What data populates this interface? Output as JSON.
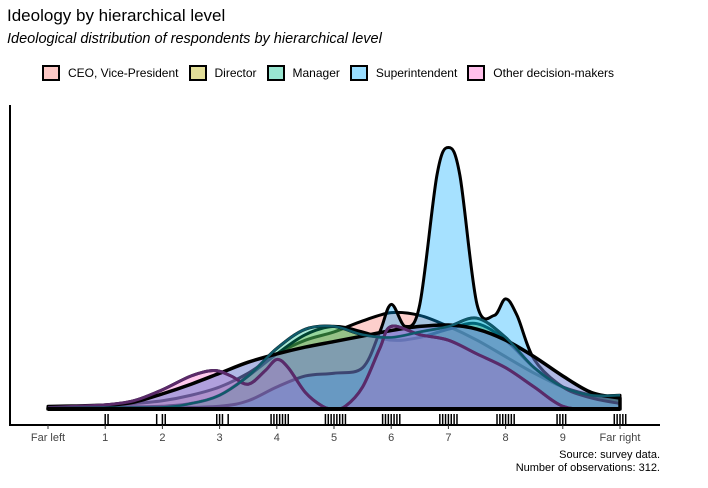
{
  "header": {
    "title": "Ideology by hierarchical level",
    "subtitle": "Ideological distribution of respondents by hierarchical level"
  },
  "caption": {
    "source": "Source: survey data.",
    "observations": "Number of observations: 312."
  },
  "chart_data": {
    "type": "area",
    "title": "Ideology by hierarchical level",
    "subtitle": "Ideological distribution of respondents by hierarchical level",
    "xlabel": "",
    "ylabel": "",
    "x_categories": [
      "Far left",
      "1",
      "2",
      "3",
      "4",
      "5",
      "6",
      "7",
      "8",
      "9",
      "Far right"
    ],
    "x_values": [
      0,
      1,
      2,
      3,
      4,
      5,
      6,
      7,
      8,
      9,
      10
    ],
    "xlim": [
      -0.7,
      10.7
    ],
    "ylim": [
      0,
      1.05
    ],
    "y_ticks_visible": false,
    "grid": false,
    "legend_position": "top",
    "series": [
      {
        "name": "CEO, Vice-President",
        "color": "#f8766d",
        "density": [
          [
            0,
            0.01
          ],
          [
            0.5,
            0.012
          ],
          [
            1,
            0.015
          ],
          [
            1.5,
            0.02
          ],
          [
            2,
            0.03
          ],
          [
            2.5,
            0.05
          ],
          [
            3,
            0.08
          ],
          [
            3.5,
            0.13
          ],
          [
            4,
            0.2
          ],
          [
            4.5,
            0.25
          ],
          [
            5,
            0.28
          ],
          [
            5.5,
            0.32
          ],
          [
            6,
            0.35
          ],
          [
            6.5,
            0.34
          ],
          [
            7,
            0.3
          ],
          [
            7.5,
            0.25
          ],
          [
            8,
            0.19
          ],
          [
            8.5,
            0.13
          ],
          [
            9,
            0.08
          ],
          [
            9.5,
            0.05
          ],
          [
            10,
            0.03
          ]
        ]
      },
      {
        "name": "Director",
        "color": "#b8b000",
        "density": [
          [
            0,
            0.005
          ],
          [
            1,
            0.006
          ],
          [
            1.5,
            0.008
          ],
          [
            2,
            0.01
          ],
          [
            2.5,
            0.02
          ],
          [
            3,
            0.05
          ],
          [
            3.5,
            0.12
          ],
          [
            4,
            0.2
          ],
          [
            4.5,
            0.27
          ],
          [
            5,
            0.3
          ],
          [
            5.5,
            0.28
          ],
          [
            6,
            0.25
          ],
          [
            6.5,
            0.26
          ],
          [
            7,
            0.29
          ],
          [
            7.5,
            0.31
          ],
          [
            8,
            0.25
          ],
          [
            8.5,
            0.15
          ],
          [
            9,
            0.08
          ],
          [
            9.5,
            0.05
          ],
          [
            10,
            0.04
          ]
        ]
      },
      {
        "name": "Manager",
        "color": "#00c08b",
        "density": [
          [
            0,
            0.003
          ],
          [
            1,
            0.005
          ],
          [
            2,
            0.006
          ],
          [
            2.5,
            0.02
          ],
          [
            3,
            0.05
          ],
          [
            3.5,
            0.12
          ],
          [
            4,
            0.22
          ],
          [
            4.5,
            0.29
          ],
          [
            5,
            0.3
          ],
          [
            5.5,
            0.27
          ],
          [
            6,
            0.26
          ],
          [
            6.5,
            0.28
          ],
          [
            7,
            0.3
          ],
          [
            7.5,
            0.33
          ],
          [
            8,
            0.26
          ],
          [
            8.5,
            0.15
          ],
          [
            9,
            0.08
          ],
          [
            9.5,
            0.05
          ],
          [
            10,
            0.05
          ]
        ]
      },
      {
        "name": "Superintendent",
        "color": "#00a9ff",
        "density": [
          [
            0,
            0.0
          ],
          [
            1,
            0.0
          ],
          [
            2,
            0.003
          ],
          [
            3,
            0.01
          ],
          [
            3.5,
            0.03
          ],
          [
            4,
            0.08
          ],
          [
            4.5,
            0.12
          ],
          [
            5,
            0.13
          ],
          [
            5.5,
            0.15
          ],
          [
            5.8,
            0.28
          ],
          [
            6,
            0.38
          ],
          [
            6.25,
            0.3
          ],
          [
            6.5,
            0.38
          ],
          [
            6.8,
            0.85
          ],
          [
            7,
            0.95
          ],
          [
            7.2,
            0.85
          ],
          [
            7.5,
            0.38
          ],
          [
            7.8,
            0.34
          ],
          [
            8,
            0.4
          ],
          [
            8.2,
            0.34
          ],
          [
            8.5,
            0.18
          ],
          [
            9,
            0.08
          ],
          [
            9.5,
            0.04
          ],
          [
            10,
            0.02
          ]
        ]
      },
      {
        "name": "Other decision-makers",
        "color": "#ff61cc",
        "density": [
          [
            0,
            0.005
          ],
          [
            0.5,
            0.01
          ],
          [
            1,
            0.015
          ],
          [
            1.5,
            0.03
          ],
          [
            2,
            0.07
          ],
          [
            2.5,
            0.12
          ],
          [
            2.9,
            0.14
          ],
          [
            3.2,
            0.12
          ],
          [
            3.5,
            0.09
          ],
          [
            3.8,
            0.14
          ],
          [
            4,
            0.18
          ],
          [
            4.2,
            0.15
          ],
          [
            4.5,
            0.06
          ],
          [
            4.8,
            0.01
          ],
          [
            5,
            0.0
          ],
          [
            5.2,
            0.01
          ],
          [
            5.5,
            0.08
          ],
          [
            5.8,
            0.22
          ],
          [
            6,
            0.3
          ],
          [
            6.5,
            0.27
          ],
          [
            7,
            0.25
          ],
          [
            7.5,
            0.2
          ],
          [
            8,
            0.15
          ],
          [
            8.5,
            0.08
          ],
          [
            9,
            0.01
          ],
          [
            9.5,
            0.0
          ],
          [
            10,
            0.0
          ]
        ]
      }
    ],
    "overall_density": {
      "name": "",
      "color": "#7080d0",
      "density": [
        [
          0,
          0.003
        ],
        [
          0.5,
          0.006
        ],
        [
          1,
          0.012
        ],
        [
          1.5,
          0.025
        ],
        [
          2,
          0.055
        ],
        [
          2.5,
          0.09
        ],
        [
          3,
          0.13
        ],
        [
          3.5,
          0.17
        ],
        [
          4,
          0.2
        ],
        [
          4.5,
          0.225
        ],
        [
          5,
          0.245
        ],
        [
          5.5,
          0.265
        ],
        [
          6,
          0.285
        ],
        [
          6.5,
          0.3
        ],
        [
          7,
          0.305
        ],
        [
          7.5,
          0.29
        ],
        [
          8,
          0.25
        ],
        [
          8.5,
          0.19
        ],
        [
          9,
          0.12
        ],
        [
          9.5,
          0.06
        ],
        [
          10,
          0.04
        ]
      ]
    },
    "rug_points": [
      1.0,
      1.05,
      1.9,
      2.0,
      2.05,
      2.95,
      3.0,
      3.05,
      3.15,
      3.9,
      3.95,
      4.0,
      4.05,
      4.1,
      4.15,
      4.2,
      4.85,
      4.9,
      4.95,
      5.0,
      5.05,
      5.1,
      5.15,
      5.2,
      5.85,
      5.9,
      5.95,
      6.0,
      6.05,
      6.1,
      6.15,
      6.85,
      6.9,
      6.95,
      7.0,
      7.05,
      7.1,
      7.15,
      7.85,
      7.9,
      7.95,
      8.0,
      8.05,
      8.1,
      8.15,
      8.9,
      8.95,
      9.0,
      9.05,
      9.9,
      9.95,
      10.0,
      10.05,
      10.1
    ]
  }
}
